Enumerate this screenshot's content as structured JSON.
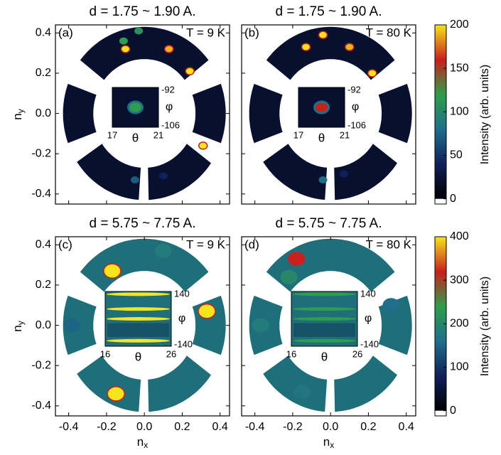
{
  "chart_data": [
    {
      "type": "heatmap",
      "title": "d = 1.75 ~ 1.90 A.",
      "panel_label": "(a)",
      "annotation": "T =   9 K",
      "ylabel_base": "n",
      "ylabel_sub": "y",
      "xlim": [
        -0.47,
        0.45
      ],
      "ylim": [
        -0.45,
        0.44
      ],
      "xticks": [
        -0.4,
        -0.2,
        0.2,
        0.4
      ],
      "yticks": [
        -0.4,
        -0.2,
        {
          "value": 0,
          "label": "0.0"
        },
        0.2,
        0.4
      ],
      "xtick_labels": false,
      "ytick_labels": true,
      "ring_color": "#081030",
      "colormap": [
        "#000000",
        "#10205a",
        "#1f6f8b",
        "#2e9e4a",
        "#c8201e",
        "#f7e51b"
      ],
      "vmax": 200,
      "hotspots": [
        {
          "nx": -0.11,
          "ny": 0.36,
          "value": 120
        },
        {
          "nx": -0.03,
          "ny": 0.41,
          "value": 110
        },
        {
          "nx": -0.1,
          "ny": 0.32,
          "value": 200
        },
        {
          "nx": 0.13,
          "ny": 0.32,
          "value": 190
        },
        {
          "nx": 0.24,
          "ny": 0.21,
          "value": 200
        },
        {
          "nx": 0.31,
          "ny": -0.16,
          "value": 200
        },
        {
          "nx": -0.05,
          "ny": -0.33,
          "value": 70
        },
        {
          "nx": 0.1,
          "ny": -0.31,
          "value": 40
        }
      ],
      "inset": {
        "xticks": [
          17,
          21
        ],
        "yticks": [
          -92,
          -106
        ],
        "xlabel": "θ",
        "ylabel": "φ",
        "style": "blob"
      }
    },
    {
      "type": "heatmap",
      "title": "d = 1.75 ~ 1.90 A.",
      "panel_label": "(b)",
      "annotation": "T =  80 K",
      "xlim": [
        -0.47,
        0.45
      ],
      "ylim": [
        -0.45,
        0.44
      ],
      "xticks": [
        -0.4,
        -0.2,
        0.2,
        0.4
      ],
      "yticks": [
        -0.4,
        -0.2,
        0.2,
        0.4
      ],
      "xtick_labels": false,
      "ytick_labels": false,
      "ring_color": "#081030",
      "colormap": [
        "#000000",
        "#10205a",
        "#1f6f8b",
        "#2e9e4a",
        "#c8201e",
        "#f7e51b"
      ],
      "vmax": 200,
      "hotspots": [
        {
          "nx": -0.04,
          "ny": 0.39,
          "value": 200
        },
        {
          "nx": -0.13,
          "ny": 0.33,
          "value": 200
        },
        {
          "nx": 0.1,
          "ny": 0.33,
          "value": 190
        },
        {
          "nx": 0.22,
          "ny": 0.2,
          "value": 200
        },
        {
          "nx": -0.04,
          "ny": -0.33,
          "value": 80
        },
        {
          "nx": 0.07,
          "ny": -0.3,
          "value": 40
        }
      ],
      "inset": {
        "xticks": [
          17,
          21
        ],
        "yticks": [
          -92,
          -106
        ],
        "xlabel": "θ",
        "ylabel": "φ",
        "style": "blob"
      },
      "colorbar": {
        "label": "Intensity (arb. units)",
        "ylim": [
          -6,
          200
        ],
        "yticks": [
          0,
          50,
          100,
          150,
          200
        ]
      }
    },
    {
      "type": "heatmap",
      "title": "d = 5.75 ~ 7.75 A.",
      "panel_label": "(c)",
      "annotation": "T =   9 K",
      "ylabel_base": "n",
      "ylabel_sub": "y",
      "xlabel_base": "n",
      "xlabel_sub": "x",
      "xlim": [
        -0.47,
        0.45
      ],
      "ylim": [
        -0.45,
        0.44
      ],
      "xticks": [
        -0.4,
        -0.2,
        {
          "value": 0,
          "label": "0.0"
        },
        0.2,
        0.4
      ],
      "yticks": [
        -0.4,
        -0.2,
        {
          "value": 0,
          "label": "0.0"
        },
        0.2,
        0.4
      ],
      "xtick_labels": true,
      "ytick_labels": true,
      "ring_color": "#1f6f7b",
      "colormap": [
        "#000000",
        "#10205a",
        "#1f6f8b",
        "#2e9e4a",
        "#c8201e",
        "#f7e51b"
      ],
      "vmax": 400,
      "hotspots": [
        {
          "nx": -0.17,
          "ny": 0.27,
          "value": 400
        },
        {
          "nx": 0.33,
          "ny": 0.07,
          "value": 400
        },
        {
          "nx": -0.15,
          "ny": -0.34,
          "value": 400
        },
        {
          "nx": 0.1,
          "ny": 0.37,
          "value": 180
        },
        {
          "nx": -0.38,
          "ny": 0.0,
          "value": 150
        }
      ],
      "inset": {
        "xticks": [
          16,
          26
        ],
        "yticks": [
          140,
          -140
        ],
        "xlabel": "θ",
        "ylabel": "φ",
        "style": "stripes"
      }
    },
    {
      "type": "heatmap",
      "title": "d = 5.75 ~ 7.75 A.",
      "panel_label": "(d)",
      "annotation": "T =  80 K",
      "xlabel_base": "n",
      "xlabel_sub": "x",
      "xlim": [
        -0.47,
        0.45
      ],
      "ylim": [
        -0.45,
        0.44
      ],
      "xticks": [
        -0.4,
        -0.2,
        {
          "value": 0,
          "label": "0.0"
        },
        0.2,
        0.4
      ],
      "yticks": [
        -0.4,
        -0.2,
        0.2,
        0.4
      ],
      "xtick_labels": true,
      "ytick_labels": false,
      "ring_color": "#1f6f7b",
      "colormap": [
        "#000000",
        "#10205a",
        "#1f6f8b",
        "#2e9e4a",
        "#c8201e",
        "#f7e51b"
      ],
      "vmax": 400,
      "hotspots": [
        {
          "nx": -0.18,
          "ny": 0.33,
          "value": 320
        },
        {
          "nx": -0.22,
          "ny": 0.24,
          "value": 200
        },
        {
          "nx": -0.37,
          "ny": 0.0,
          "value": 180
        },
        {
          "nx": 0.32,
          "ny": 0.1,
          "value": 160
        },
        {
          "nx": -0.15,
          "ny": -0.33,
          "value": 170
        }
      ],
      "inset": {
        "xticks": [
          16,
          26
        ],
        "yticks": [
          140,
          -140
        ],
        "xlabel": "θ",
        "ylabel": "φ",
        "style": "stripes"
      },
      "colorbar": {
        "label": "Intensity (arb. units)",
        "ylim": [
          -12,
          400
        ],
        "yticks": [
          0,
          100,
          200,
          300,
          400
        ]
      }
    }
  ]
}
